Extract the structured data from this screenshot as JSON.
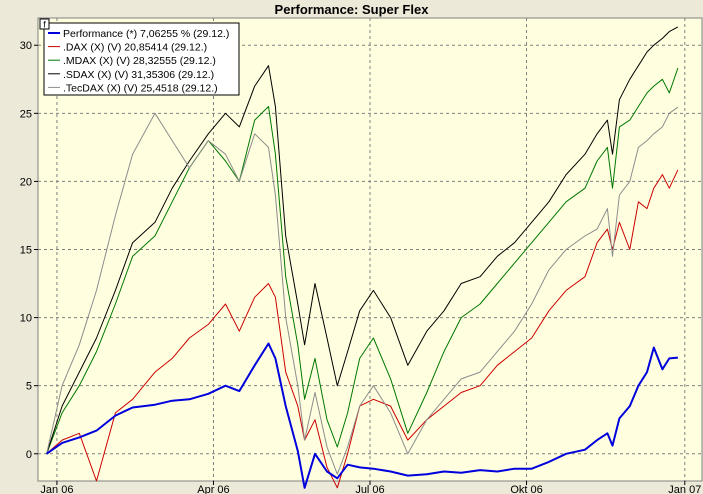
{
  "window": {
    "title": "Performance: Super Flex",
    "corner_button": "f"
  },
  "chart_data": {
    "type": "line",
    "title": "Performance: Super Flex",
    "xlabel": "",
    "ylabel": "",
    "ylim": [
      -2,
      32
    ],
    "yticks": [
      0,
      5,
      10,
      15,
      20,
      25,
      30
    ],
    "xlim": [
      "2005-12-22",
      "2007-01-12"
    ],
    "xticks": [
      {
        "label": "Jan 06",
        "date": "2006-01-02"
      },
      {
        "label": "Apr 06",
        "date": "2006-04-03"
      },
      {
        "label": "Jul 06",
        "date": "2006-07-03"
      },
      {
        "label": "Okt 06",
        "date": "2006-10-02"
      },
      {
        "label": "Jan 07",
        "date": "2007-01-02"
      }
    ],
    "grid": true,
    "legend_position": "top-left",
    "series": [
      {
        "name": "Performance (*) 7,06255 % (29.12.)",
        "color": "#0000dd",
        "width": 2,
        "x": [
          "2005-12-27",
          "2006-01-05",
          "2006-01-15",
          "2006-01-25",
          "2006-02-05",
          "2006-02-15",
          "2006-02-28",
          "2006-03-10",
          "2006-03-20",
          "2006-03-31",
          "2006-04-10",
          "2006-04-18",
          "2006-04-27",
          "2006-05-05",
          "2006-05-09",
          "2006-05-15",
          "2006-05-22",
          "2006-05-26",
          "2006-06-01",
          "2006-06-08",
          "2006-06-14",
          "2006-06-20",
          "2006-06-27",
          "2006-07-05",
          "2006-07-15",
          "2006-07-25",
          "2006-08-05",
          "2006-08-15",
          "2006-08-25",
          "2006-09-05",
          "2006-09-15",
          "2006-09-25",
          "2006-10-05",
          "2006-10-15",
          "2006-10-25",
          "2006-11-05",
          "2006-11-12",
          "2006-11-18",
          "2006-11-21",
          "2006-11-25",
          "2006-12-01",
          "2006-12-06",
          "2006-12-11",
          "2006-12-15",
          "2006-12-20",
          "2006-12-24",
          "2006-12-29"
        ],
        "values": [
          0,
          0.8,
          1.2,
          1.7,
          2.8,
          3.4,
          3.6,
          3.9,
          4.0,
          4.4,
          5.0,
          4.6,
          6.5,
          8.1,
          7.0,
          3.5,
          0.2,
          -2.5,
          0,
          -1.3,
          -1.8,
          -0.8,
          -1.0,
          -1.1,
          -1.3,
          -1.6,
          -1.5,
          -1.3,
          -1.4,
          -1.2,
          -1.3,
          -1.1,
          -1.1,
          -0.6,
          0.0,
          0.3,
          1.0,
          1.5,
          0.6,
          2.6,
          3.5,
          5.0,
          6.0,
          7.8,
          6.2,
          7.0,
          7.06
        ]
      },
      {
        "name": ".DAX (X) (V) 20,85414 (29.12.)",
        "color": "#cc0000",
        "width": 1,
        "x": [
          "2005-12-27",
          "2006-01-05",
          "2006-01-15",
          "2006-01-25",
          "2006-02-05",
          "2006-02-15",
          "2006-02-28",
          "2006-03-10",
          "2006-03-20",
          "2006-03-31",
          "2006-04-10",
          "2006-04-18",
          "2006-04-27",
          "2006-05-05",
          "2006-05-09",
          "2006-05-15",
          "2006-05-22",
          "2006-05-26",
          "2006-06-01",
          "2006-06-08",
          "2006-06-14",
          "2006-06-20",
          "2006-06-27",
          "2006-07-05",
          "2006-07-15",
          "2006-07-25",
          "2006-08-05",
          "2006-08-15",
          "2006-08-25",
          "2006-09-05",
          "2006-09-15",
          "2006-09-25",
          "2006-10-05",
          "2006-10-15",
          "2006-10-25",
          "2006-11-05",
          "2006-11-12",
          "2006-11-18",
          "2006-11-21",
          "2006-11-25",
          "2006-12-01",
          "2006-12-06",
          "2006-12-11",
          "2006-12-15",
          "2006-12-20",
          "2006-12-24",
          "2006-12-29"
        ],
        "values": [
          0,
          1.0,
          1.5,
          -2.0,
          3.0,
          4.0,
          6.0,
          7.0,
          8.5,
          9.5,
          11.0,
          9.0,
          11.5,
          12.5,
          11.5,
          6.0,
          3.5,
          1.0,
          2.5,
          -1.0,
          -2.5,
          0,
          3.5,
          4.0,
          3.5,
          1.0,
          2.5,
          3.5,
          4.5,
          5.0,
          6.5,
          7.5,
          8.5,
          10.5,
          12.0,
          13.0,
          15.5,
          16.5,
          15.0,
          17.0,
          15.0,
          18.5,
          18.0,
          19.5,
          20.5,
          19.5,
          20.85
        ]
      },
      {
        "name": ".MDAX (X) (V) 28,32555 (29.12.)",
        "color": "#007700",
        "width": 1,
        "x": [
          "2005-12-27",
          "2006-01-05",
          "2006-01-15",
          "2006-01-25",
          "2006-02-05",
          "2006-02-15",
          "2006-02-28",
          "2006-03-10",
          "2006-03-20",
          "2006-03-31",
          "2006-04-10",
          "2006-04-18",
          "2006-04-27",
          "2006-05-05",
          "2006-05-09",
          "2006-05-15",
          "2006-05-22",
          "2006-05-26",
          "2006-06-01",
          "2006-06-08",
          "2006-06-14",
          "2006-06-20",
          "2006-06-27",
          "2006-07-05",
          "2006-07-15",
          "2006-07-25",
          "2006-08-05",
          "2006-08-15",
          "2006-08-25",
          "2006-09-05",
          "2006-09-15",
          "2006-09-25",
          "2006-10-05",
          "2006-10-15",
          "2006-10-25",
          "2006-11-05",
          "2006-11-12",
          "2006-11-18",
          "2006-11-21",
          "2006-11-25",
          "2006-12-01",
          "2006-12-06",
          "2006-12-11",
          "2006-12-15",
          "2006-12-20",
          "2006-12-24",
          "2006-12-29"
        ],
        "values": [
          0,
          3.0,
          5.0,
          7.5,
          11.0,
          14.5,
          16.0,
          18.5,
          21.0,
          23.0,
          21.5,
          20.0,
          24.5,
          25.5,
          22.0,
          13.0,
          8.0,
          4.0,
          7.0,
          2.5,
          0.5,
          3.0,
          7.0,
          8.5,
          5.5,
          1.5,
          4.5,
          7.5,
          10.0,
          11.0,
          12.5,
          14.0,
          15.5,
          17.0,
          18.5,
          19.5,
          21.5,
          22.5,
          19.5,
          24.0,
          24.5,
          25.5,
          26.5,
          27.0,
          27.5,
          26.5,
          28.33
        ]
      },
      {
        "name": ".SDAX (X) (V) 31,35306 (29.12.)",
        "color": "#000000",
        "width": 1,
        "x": [
          "2005-12-27",
          "2006-01-05",
          "2006-01-15",
          "2006-01-25",
          "2006-02-05",
          "2006-02-15",
          "2006-02-28",
          "2006-03-10",
          "2006-03-20",
          "2006-03-31",
          "2006-04-10",
          "2006-04-18",
          "2006-04-27",
          "2006-05-05",
          "2006-05-09",
          "2006-05-15",
          "2006-05-22",
          "2006-05-26",
          "2006-06-01",
          "2006-06-08",
          "2006-06-14",
          "2006-06-20",
          "2006-06-27",
          "2006-07-05",
          "2006-07-15",
          "2006-07-25",
          "2006-08-05",
          "2006-08-15",
          "2006-08-25",
          "2006-09-05",
          "2006-09-15",
          "2006-09-25",
          "2006-10-05",
          "2006-10-15",
          "2006-10-25",
          "2006-11-05",
          "2006-11-12",
          "2006-11-18",
          "2006-11-21",
          "2006-11-25",
          "2006-12-01",
          "2006-12-06",
          "2006-12-11",
          "2006-12-15",
          "2006-12-20",
          "2006-12-24",
          "2006-12-29"
        ],
        "values": [
          0,
          3.5,
          6.0,
          8.5,
          12.0,
          15.5,
          17.0,
          19.5,
          21.5,
          23.5,
          25.0,
          24.0,
          27.0,
          28.5,
          25.5,
          16.0,
          11.0,
          8.0,
          12.5,
          8.5,
          5.0,
          7.5,
          10.5,
          12.0,
          10.0,
          6.5,
          9.0,
          10.5,
          12.5,
          13.0,
          14.5,
          15.5,
          17.0,
          18.5,
          20.5,
          22.0,
          23.5,
          24.5,
          22.0,
          26.0,
          27.5,
          28.5,
          29.5,
          30.0,
          30.5,
          31.0,
          31.35
        ]
      },
      {
        "name": ".TecDAX (X) (V) 25,4518 (29.12.)",
        "color": "#8c8c8c",
        "width": 1,
        "x": [
          "2005-12-27",
          "2006-01-05",
          "2006-01-15",
          "2006-01-25",
          "2006-02-05",
          "2006-02-15",
          "2006-02-28",
          "2006-03-10",
          "2006-03-20",
          "2006-03-31",
          "2006-04-10",
          "2006-04-18",
          "2006-04-27",
          "2006-05-05",
          "2006-05-09",
          "2006-05-15",
          "2006-05-22",
          "2006-05-26",
          "2006-06-01",
          "2006-06-08",
          "2006-06-14",
          "2006-06-20",
          "2006-06-27",
          "2006-07-05",
          "2006-07-15",
          "2006-07-25",
          "2006-08-05",
          "2006-08-15",
          "2006-08-25",
          "2006-09-05",
          "2006-09-15",
          "2006-09-25",
          "2006-10-05",
          "2006-10-15",
          "2006-10-25",
          "2006-11-05",
          "2006-11-12",
          "2006-11-18",
          "2006-11-21",
          "2006-11-25",
          "2006-12-01",
          "2006-12-06",
          "2006-12-11",
          "2006-12-15",
          "2006-12-20",
          "2006-12-24",
          "2006-12-29"
        ],
        "values": [
          0,
          5.0,
          8.0,
          12.0,
          17.5,
          22.0,
          25.0,
          23.0,
          21.0,
          23.0,
          22.0,
          20.0,
          23.5,
          22.5,
          19.0,
          10.0,
          5.0,
          1.0,
          4.5,
          0.5,
          -1.5,
          0.5,
          3.5,
          5.0,
          3.0,
          0,
          2.5,
          4.0,
          5.5,
          6.0,
          7.5,
          9.0,
          11.0,
          13.5,
          15.0,
          16.0,
          16.5,
          18.0,
          14.5,
          19.0,
          20.0,
          22.5,
          23.0,
          23.5,
          24.0,
          25.0,
          25.45
        ]
      }
    ]
  }
}
